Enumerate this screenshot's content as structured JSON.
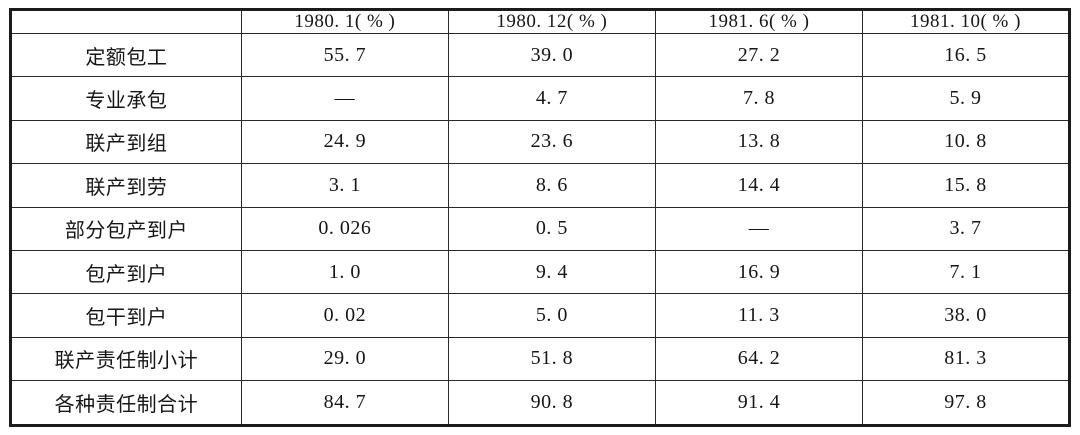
{
  "colors": {
    "background": "#ffffff",
    "border": "#1b1b1b",
    "text": "#161616"
  },
  "table": {
    "header": [
      "",
      "1980. 1( % )",
      "1980. 12( % )",
      "1981. 6( % )",
      "1981. 10( % )"
    ],
    "rows": [
      {
        "label": "定额包工",
        "values": [
          "55. 7",
          "39. 0",
          "27. 2",
          "16. 5"
        ]
      },
      {
        "label": "专业承包",
        "values": [
          "—",
          "4. 7",
          "7. 8",
          "5. 9"
        ]
      },
      {
        "label": "联产到组",
        "values": [
          "24. 9",
          "23. 6",
          "13. 8",
          "10. 8"
        ]
      },
      {
        "label": "联产到劳",
        "values": [
          "3. 1",
          "8. 6",
          "14. 4",
          "15. 8"
        ]
      },
      {
        "label": "部分包产到户",
        "values": [
          "0. 026",
          "0. 5",
          "—",
          "3. 7"
        ]
      },
      {
        "label": "包产到户",
        "values": [
          "1. 0",
          "9. 4",
          "16. 9",
          "7. 1"
        ]
      },
      {
        "label": "包干到户",
        "values": [
          "0. 02",
          "5. 0",
          "11. 3",
          "38. 0"
        ]
      },
      {
        "label": "联产责任制小计",
        "values": [
          "29. 0",
          "51. 8",
          "64. 2",
          "81. 3"
        ]
      },
      {
        "label": "各种责任制合计",
        "values": [
          "84. 7",
          "90. 8",
          "91. 4",
          "97. 8"
        ]
      }
    ]
  }
}
